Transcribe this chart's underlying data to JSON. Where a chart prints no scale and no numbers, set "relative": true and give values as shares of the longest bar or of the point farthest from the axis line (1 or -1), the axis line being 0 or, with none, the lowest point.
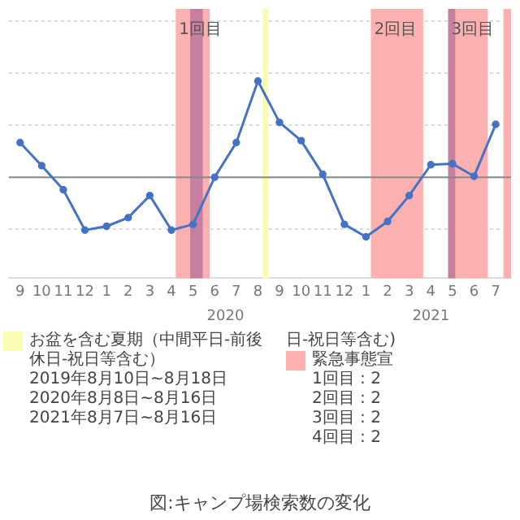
{
  "chart_data": {
    "type": "line",
    "title": "図:キャンプ場検索数の変化",
    "relative": true,
    "grid": "y",
    "marker": "circle",
    "line_style": "solid",
    "legend": false,
    "x": [
      "2019-09",
      "2019-10",
      "2019-11",
      "2019-12",
      "2020-01",
      "2020-02",
      "2020-03",
      "2020-04",
      "2020-05",
      "2020-06",
      "2020-07",
      "2020-08",
      "2020-09",
      "2020-10",
      "2020-11",
      "2020-12",
      "2021-01",
      "2021-02",
      "2021-03",
      "2021-04",
      "2021-05",
      "2021-06",
      "2021-07"
    ],
    "series": [
      {
        "color": "#4472c4",
        "values": [
          0.36,
          0.12,
          -0.13,
          -0.55,
          -0.51,
          -0.42,
          -0.19,
          -0.55,
          -0.49,
          0,
          0.36,
          1,
          0.57,
          0.38,
          0.03,
          -0.49,
          -0.62,
          -0.46,
          -0.19,
          0.13,
          0.14,
          0.01,
          0.55
        ]
      }
    ],
    "xlim": [
      "2019-08-16",
      "2021-07-23"
    ],
    "xticks": [
      {
        "value": "2019-09",
        "label": "9"
      },
      {
        "value": "2019-10",
        "label": "10"
      },
      {
        "value": "2019-11",
        "label": "11"
      },
      {
        "value": "2019-12",
        "label": "12"
      },
      {
        "value": "2020-01",
        "label": "1"
      },
      {
        "value": "2020-02",
        "label": "2"
      },
      {
        "value": "2020-03",
        "label": "3"
      },
      {
        "value": "2020-04",
        "label": "4"
      },
      {
        "value": "2020-05",
        "label": "5"
      },
      {
        "value": "2020-06",
        "label": "6"
      },
      {
        "value": "2020-07",
        "label": "7"
      },
      {
        "value": "2020-08",
        "label": "8"
      },
      {
        "value": "2020-09",
        "label": "9"
      },
      {
        "value": "2020-10",
        "label": "10"
      },
      {
        "value": "2020-11",
        "label": "11"
      },
      {
        "value": "2020-12",
        "label": "12"
      },
      {
        "value": "2021-01",
        "label": "1"
      },
      {
        "value": "2021-02",
        "label": "2"
      },
      {
        "value": "2021-03",
        "label": "3"
      },
      {
        "value": "2021-04",
        "label": "4"
      },
      {
        "value": "2021-05",
        "label": "5"
      },
      {
        "value": "2021-06",
        "label": "6"
      },
      {
        "value": "2021-07",
        "label": "7"
      }
    ],
    "ref_lines": [
      {
        "axis": "y",
        "value": 0,
        "color": "#888888"
      }
    ],
    "bands": [
      {
        "axis": "x",
        "from": "2020-04-07",
        "to": "2020-05-25",
        "label": "1回目",
        "color": "#fdb0b0"
      },
      {
        "axis": "x",
        "from": "2021-01-08",
        "to": "2021-03-21",
        "label": "2回目",
        "color": "#fdb0b0"
      },
      {
        "axis": "x",
        "from": "2021-04-25",
        "to": "2021-06-20",
        "label": "3回目",
        "color": "#fdb0b0"
      },
      {
        "axis": "x",
        "from": "2021-07-12",
        "to": "2021-07-23",
        "color": "#fdb0b0"
      },
      {
        "axis": "x",
        "from": "2020-04-27",
        "to": "2020-05-15",
        "color": "#c580a0"
      },
      {
        "axis": "x",
        "from": "2021-04-25",
        "to": "2021-05-05",
        "color": "#c580a0"
      },
      {
        "axis": "x",
        "from": "2020-08-08",
        "to": "2020-08-16",
        "color": "#fcfcb0"
      }
    ],
    "annotations": [
      "日-祝日等含む)",
      "お盆を含む夏期（中間平日-前後休日-祝日等含む）",
      "2019年8月10日~8月18日",
      "2020年8月8日~8月16日",
      "2021年8月7日~8月16日",
      "緊急事態宣",
      "1回目 : 2",
      "2回目 : 2",
      "3回目 : 2",
      "4回目 : 2",
      "2020",
      "2021"
    ]
  }
}
